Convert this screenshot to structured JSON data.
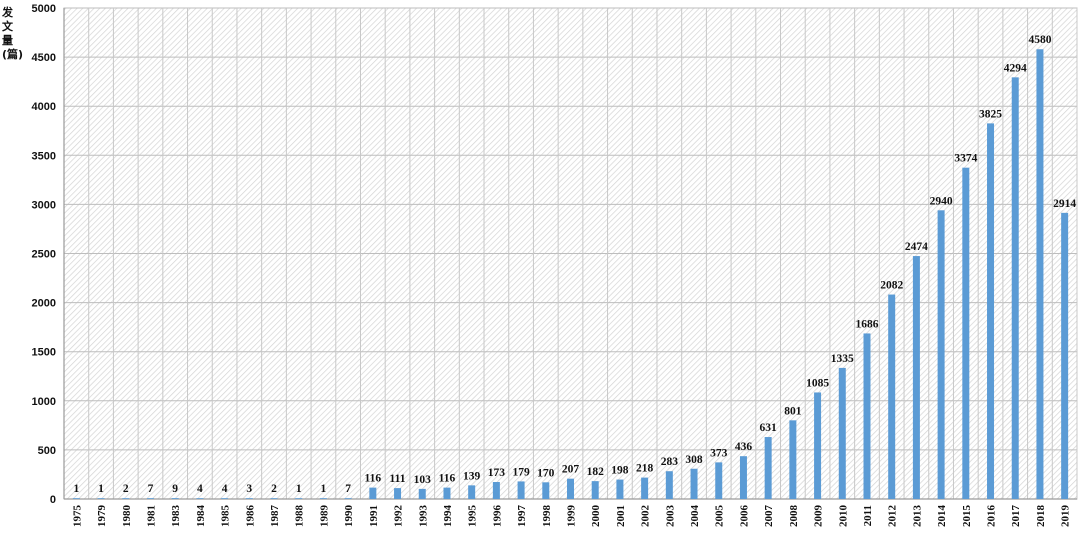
{
  "chart_data": {
    "type": "bar",
    "ylabel": "发文量(篇)",
    "xlabel": "",
    "ylim": [
      0,
      5000
    ],
    "yticks": [
      0,
      500,
      1000,
      1500,
      2000,
      2500,
      3000,
      3500,
      4000,
      4500,
      5000
    ],
    "grid": true,
    "bar_color": "#5B9BD5",
    "categories": [
      "1975",
      "1979",
      "1980",
      "1981",
      "1983",
      "1984",
      "1985",
      "1986",
      "1987",
      "1988",
      "1989",
      "1990",
      "1991",
      "1992",
      "1993",
      "1994",
      "1995",
      "1996",
      "1997",
      "1998",
      "1999",
      "2000",
      "2001",
      "2002",
      "2003",
      "2004",
      "2005",
      "2006",
      "2007",
      "2008",
      "2009",
      "2010",
      "2011",
      "2012",
      "2013",
      "2014",
      "2015",
      "2016",
      "2017",
      "2018",
      "2019"
    ],
    "values": [
      1,
      1,
      2,
      7,
      9,
      4,
      4,
      3,
      2,
      1,
      1,
      7,
      116,
      111,
      103,
      116,
      139,
      173,
      179,
      170,
      207,
      182,
      198,
      218,
      283,
      308,
      373,
      436,
      631,
      801,
      1085,
      1335,
      1686,
      2082,
      2474,
      2940,
      3374,
      3825,
      4294,
      4580,
      2914
    ]
  }
}
